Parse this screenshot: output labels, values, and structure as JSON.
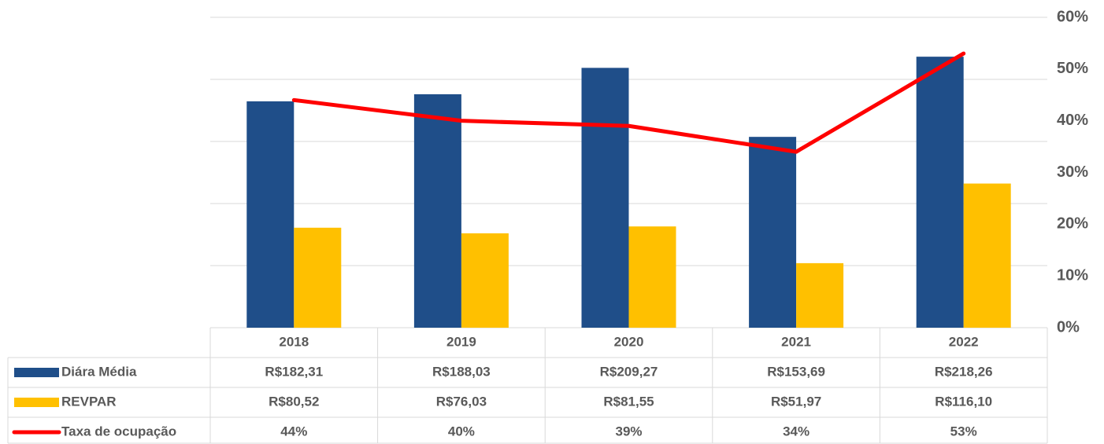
{
  "chart_data": {
    "type": "bar",
    "categories": [
      "2018",
      "2019",
      "2020",
      "2021",
      "2022"
    ],
    "series": [
      {
        "name": "Diára Média",
        "color": "#1f4e89",
        "values": [
          182.31,
          188.03,
          209.27,
          153.69,
          218.26
        ],
        "value_labels": [
          "R$182,31",
          "R$188,03",
          "R$209,27",
          "R$153,69",
          "R$218,26"
        ]
      },
      {
        "name": "REVPAR",
        "color": "#ffc000",
        "values": [
          80.52,
          76.03,
          81.55,
          51.97,
          116.1
        ],
        "value_labels": [
          "R$80,52",
          "R$76,03",
          "R$81,55",
          "R$51,97",
          "R$116,10"
        ]
      },
      {
        "name": "Taxa de ocupação",
        "color": "#ff0000",
        "type": "line",
        "axis": "y2",
        "values": [
          44,
          40,
          39,
          34,
          53
        ],
        "value_labels": [
          "44%",
          "40%",
          "39%",
          "34%",
          "53%"
        ]
      }
    ],
    "ylim": [
      0,
      250
    ],
    "yticks": [
      0,
      50,
      100,
      150,
      200,
      250
    ],
    "y2lim": [
      0,
      60
    ],
    "y2ticks": [
      {
        "value": 0,
        "label": "0%"
      },
      {
        "value": 10,
        "label": "10%"
      },
      {
        "value": 20,
        "label": "20%"
      },
      {
        "value": 30,
        "label": "30%"
      },
      {
        "value": 40,
        "label": "40%"
      },
      {
        "value": 50,
        "label": "50%"
      },
      {
        "value": 60,
        "label": "60%"
      }
    ],
    "grid": true
  }
}
